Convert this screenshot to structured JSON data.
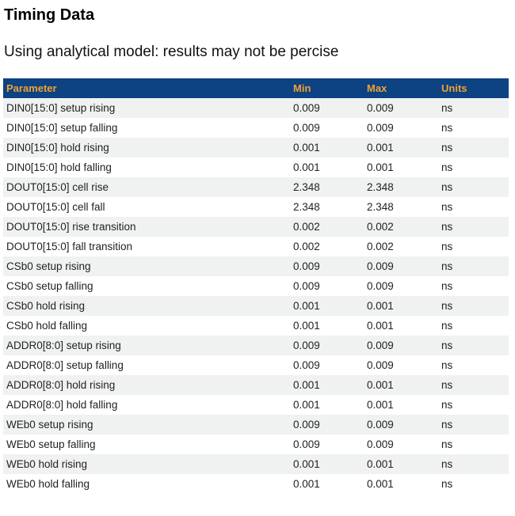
{
  "page": {
    "title": "Timing Data",
    "subtitle": "Using analytical model: results may not be percise"
  },
  "colors": {
    "header_bg": "#0d4283",
    "header_text": "#f0a232",
    "row_stripe": "#f0f1f1",
    "body_text": "#222222"
  },
  "table": {
    "columns": [
      {
        "key": "parameter",
        "label": "Parameter"
      },
      {
        "key": "min",
        "label": "Min"
      },
      {
        "key": "max",
        "label": "Max"
      },
      {
        "key": "units",
        "label": "Units"
      }
    ],
    "rows": [
      {
        "parameter": "DIN0[15:0] setup rising",
        "min": "0.009",
        "max": "0.009",
        "units": "ns"
      },
      {
        "parameter": "DIN0[15:0] setup falling",
        "min": "0.009",
        "max": "0.009",
        "units": "ns"
      },
      {
        "parameter": "DIN0[15:0] hold rising",
        "min": "0.001",
        "max": "0.001",
        "units": "ns"
      },
      {
        "parameter": "DIN0[15:0] hold falling",
        "min": "0.001",
        "max": "0.001",
        "units": "ns"
      },
      {
        "parameter": "DOUT0[15:0] cell rise",
        "min": "2.348",
        "max": "2.348",
        "units": "ns"
      },
      {
        "parameter": "DOUT0[15:0] cell fall",
        "min": "2.348",
        "max": "2.348",
        "units": "ns"
      },
      {
        "parameter": "DOUT0[15:0] rise transition",
        "min": "0.002",
        "max": "0.002",
        "units": "ns"
      },
      {
        "parameter": "DOUT0[15:0] fall transition",
        "min": "0.002",
        "max": "0.002",
        "units": "ns"
      },
      {
        "parameter": "CSb0 setup rising",
        "min": "0.009",
        "max": "0.009",
        "units": "ns"
      },
      {
        "parameter": "CSb0 setup falling",
        "min": "0.009",
        "max": "0.009",
        "units": "ns"
      },
      {
        "parameter": "CSb0 hold rising",
        "min": "0.001",
        "max": "0.001",
        "units": "ns"
      },
      {
        "parameter": "CSb0 hold falling",
        "min": "0.001",
        "max": "0.001",
        "units": "ns"
      },
      {
        "parameter": "ADDR0[8:0] setup rising",
        "min": "0.009",
        "max": "0.009",
        "units": "ns"
      },
      {
        "parameter": "ADDR0[8:0] setup falling",
        "min": "0.009",
        "max": "0.009",
        "units": "ns"
      },
      {
        "parameter": "ADDR0[8:0] hold rising",
        "min": "0.001",
        "max": "0.001",
        "units": "ns"
      },
      {
        "parameter": "ADDR0[8:0] hold falling",
        "min": "0.001",
        "max": "0.001",
        "units": "ns"
      },
      {
        "parameter": "WEb0 setup rising",
        "min": "0.009",
        "max": "0.009",
        "units": "ns"
      },
      {
        "parameter": "WEb0 setup falling",
        "min": "0.009",
        "max": "0.009",
        "units": "ns"
      },
      {
        "parameter": "WEb0 hold rising",
        "min": "0.001",
        "max": "0.001",
        "units": "ns"
      },
      {
        "parameter": "WEb0 hold falling",
        "min": "0.001",
        "max": "0.001",
        "units": "ns"
      }
    ]
  }
}
